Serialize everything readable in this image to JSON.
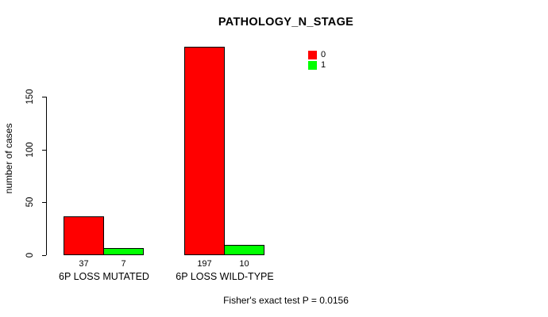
{
  "chart_data": {
    "type": "bar",
    "title": "PATHOLOGY_N_STAGE",
    "ylabel": "number of cases",
    "xlabel": "",
    "categories": [
      "6P LOSS MUTATED",
      "6P LOSS WILD-TYPE"
    ],
    "series": [
      {
        "name": "0",
        "color": "#ff0000",
        "values": [
          37,
          197
        ]
      },
      {
        "name": "1",
        "color": "#00ff00",
        "values": [
          7,
          10
        ]
      }
    ],
    "bar_value_labels": [
      [
        "37",
        "7"
      ],
      [
        "197",
        "10"
      ]
    ],
    "yticks": [
      0,
      50,
      100,
      150
    ],
    "ylim": [
      0,
      200
    ],
    "grid": false,
    "legend_position": "top-right",
    "footnote": "Fisher's exact test P = 0.0156"
  },
  "colors": {
    "background": "#ffffff",
    "axis": "#000000",
    "text": "#000000",
    "bar_border": "#000000",
    "series_0": "#ff0000",
    "series_1": "#00ff00"
  }
}
